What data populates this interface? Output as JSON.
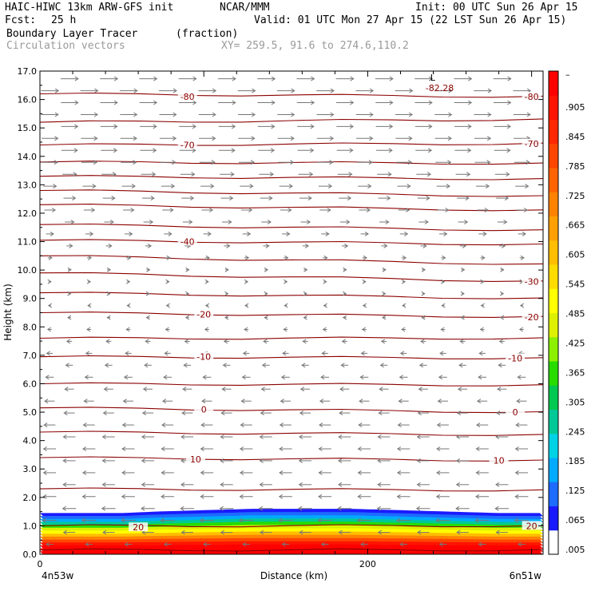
{
  "header": {
    "model_title": "HAIC-HIWC 13km ARW-GFS init",
    "org": "NCAR/MMM",
    "init": "Init: 00 UTC Sun 26 Apr 15",
    "fcst_label": "Fcst:",
    "fcst_value": "25 h",
    "valid": "Valid: 01 UTC Mon 27 Apr 15 (22 LST Sun 26 Apr 15)",
    "field": "Boundary Layer Tracer",
    "units": "(fraction)",
    "vectors": "Circulation vectors",
    "xy": "XY= 259.5, 91.6 to 274.6,110.2"
  },
  "colors": {
    "contour": "#8b0000",
    "vector": "#777777",
    "scale": [
      "#ffffff",
      "#1a1aff",
      "#1e6bff",
      "#00aaff",
      "#00d2e6",
      "#00c896",
      "#00c850",
      "#28dc00",
      "#8cf000",
      "#dcf000",
      "#ffff00",
      "#ffdc00",
      "#ffbe00",
      "#ffa000",
      "#ff8200",
      "#ff6400",
      "#ff4600",
      "#ff2800",
      "#ff1400",
      "#ff0000"
    ]
  },
  "chart_data": {
    "type": "heatmap",
    "xlabel": "Distance (km)",
    "ylabel": "Height (km)",
    "xlim": [
      0,
      307
    ],
    "ylim": [
      0,
      17
    ],
    "x_ticks": [
      "0",
      "200"
    ],
    "x_end_labels": [
      "4n53w",
      "6n51w"
    ],
    "y_ticks": [
      "0.0",
      "1.0",
      "2.0",
      "3.0",
      "4.0",
      "5.0",
      "6.0",
      "7.0",
      "8.0",
      "9.0",
      "10.0",
      "11.0",
      "12.0",
      "13.0",
      "14.0",
      "15.0",
      "16.0",
      "17.0"
    ],
    "colorbar_labels": [
      ".005",
      ".065",
      ".125",
      ".185",
      ".245",
      ".305",
      ".365",
      ".425",
      ".485",
      ".545",
      ".605",
      ".665",
      ".725",
      ".785",
      ".845",
      ".905",
      "–"
    ],
    "tracer_top_km": [
      1.45,
      1.45,
      1.45,
      1.5,
      1.55,
      1.6,
      1.6,
      1.6,
      1.55,
      1.5,
      1.45,
      1.45
    ],
    "tracer_top_x_km": [
      0,
      25,
      50,
      70,
      100,
      130,
      160,
      190,
      220,
      250,
      280,
      307
    ],
    "temperature_contours": [
      {
        "label": "20",
        "h0": 1.0,
        "h1": 1.0
      },
      {
        "label": "10",
        "h0": 3.4,
        "h1": 3.3
      },
      {
        "label": "0",
        "h0": 5.15,
        "h1": 5.0
      },
      {
        "label": "-10",
        "h0": 6.95,
        "h1": 6.9
      },
      {
        "label": "-20",
        "h0": 8.5,
        "h1": 8.35
      },
      {
        "label": "-30",
        "h0": 9.9,
        "h1": 9.6
      },
      {
        "label": "-40",
        "h0": 11.05,
        "h1": 10.9
      },
      {
        "label": "-70",
        "h0": 14.4,
        "h1": 14.45
      },
      {
        "label": "-80",
        "h0": 16.2,
        "h1": 16.1
      }
    ],
    "unlabeled_contours": [
      {
        "h0": 0.15,
        "h1": 0.15
      },
      {
        "h0": 2.3,
        "h1": 2.25
      },
      {
        "h0": 4.3,
        "h1": 4.2
      },
      {
        "h0": 6.0,
        "h1": 5.95
      },
      {
        "h0": 7.6,
        "h1": 7.6
      },
      {
        "h0": 9.2,
        "h1": 9.0
      },
      {
        "h0": 10.5,
        "h1": 10.2
      },
      {
        "h0": 11.6,
        "h1": 11.4
      },
      {
        "h0": 12.3,
        "h1": 12.1
      },
      {
        "h0": 12.8,
        "h1": 12.6
      },
      {
        "h0": 13.3,
        "h1": 13.2
      },
      {
        "h0": 13.8,
        "h1": 13.75
      },
      {
        "h0": 15.2,
        "h1": 15.3
      }
    ],
    "labeled_min": {
      "label": "L",
      "value": "-82.28",
      "x_km": 245,
      "h": 16.6
    },
    "contour_label_positions": [
      {
        "label": "-80",
        "x_km": 90,
        "h": 16.1
      },
      {
        "label": "-80",
        "x_km": 300,
        "h": 16.1
      },
      {
        "label": "-70",
        "x_km": 90,
        "h": 14.4
      },
      {
        "label": "-70",
        "x_km": 300,
        "h": 14.45
      },
      {
        "label": "-40",
        "x_km": 90,
        "h": 11.0
      },
      {
        "label": "-30",
        "x_km": 300,
        "h": 9.6
      },
      {
        "label": "-20",
        "x_km": 100,
        "h": 8.45
      },
      {
        "label": "-20",
        "x_km": 300,
        "h": 8.35
      },
      {
        "label": "-10",
        "x_km": 100,
        "h": 6.95
      },
      {
        "label": "-10",
        "x_km": 290,
        "h": 6.9
      },
      {
        "label": "0",
        "x_km": 100,
        "h": 5.1
      },
      {
        "label": "0",
        "x_km": 290,
        "h": 5.0
      },
      {
        "label": "10",
        "x_km": 95,
        "h": 3.35
      },
      {
        "label": "10",
        "x_km": 280,
        "h": 3.3
      },
      {
        "label": "20",
        "x_km": 60,
        "h": 0.95
      },
      {
        "label": "20",
        "x_km": 300,
        "h": 1.0
      }
    ],
    "wind_vector_profile": [
      {
        "h": 16.5,
        "u": 1.0
      },
      {
        "h": 14.0,
        "u": 0.9
      },
      {
        "h": 12.0,
        "u": 0.6
      },
      {
        "h": 10.5,
        "u": 0.25
      },
      {
        "h": 9.5,
        "u": 0.1
      },
      {
        "h": 8.5,
        "u": -0.15
      },
      {
        "h": 7.0,
        "u": -0.35
      },
      {
        "h": 5.5,
        "u": -0.55
      },
      {
        "h": 4.0,
        "u": -0.7
      },
      {
        "h": 2.5,
        "u": -0.7
      },
      {
        "h": 1.0,
        "u": -0.8
      },
      {
        "h": 0.2,
        "u": -0.3
      }
    ]
  }
}
